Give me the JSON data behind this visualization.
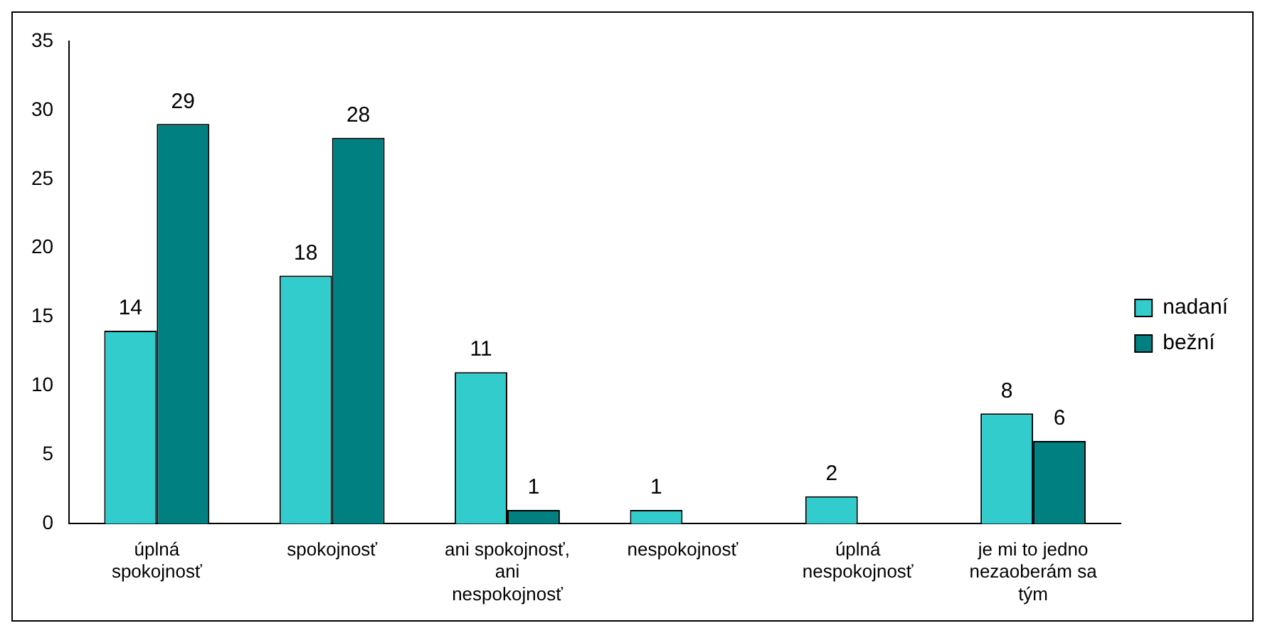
{
  "chart_data": {
    "type": "bar",
    "categories": [
      "úplná spokojnosť",
      "spokojnosť",
      "ani spokojnosť, ani nespokojnosť",
      "nespokojnosť",
      "úplná nespokojnosť",
      "je mi to jedno nezaoberám sa tým"
    ],
    "series": [
      {
        "name": "nadaní",
        "color": "#33cccc",
        "values": [
          14,
          18,
          11,
          1,
          2,
          8
        ]
      },
      {
        "name": "bežní",
        "color": "#008080",
        "values": [
          29,
          28,
          1,
          null,
          null,
          6
        ]
      }
    ],
    "ylim": [
      0,
      35
    ],
    "yticks": [
      0,
      5,
      10,
      15,
      20,
      25,
      30,
      35
    ],
    "grid": false,
    "legend": "right",
    "data_labels": true
  }
}
